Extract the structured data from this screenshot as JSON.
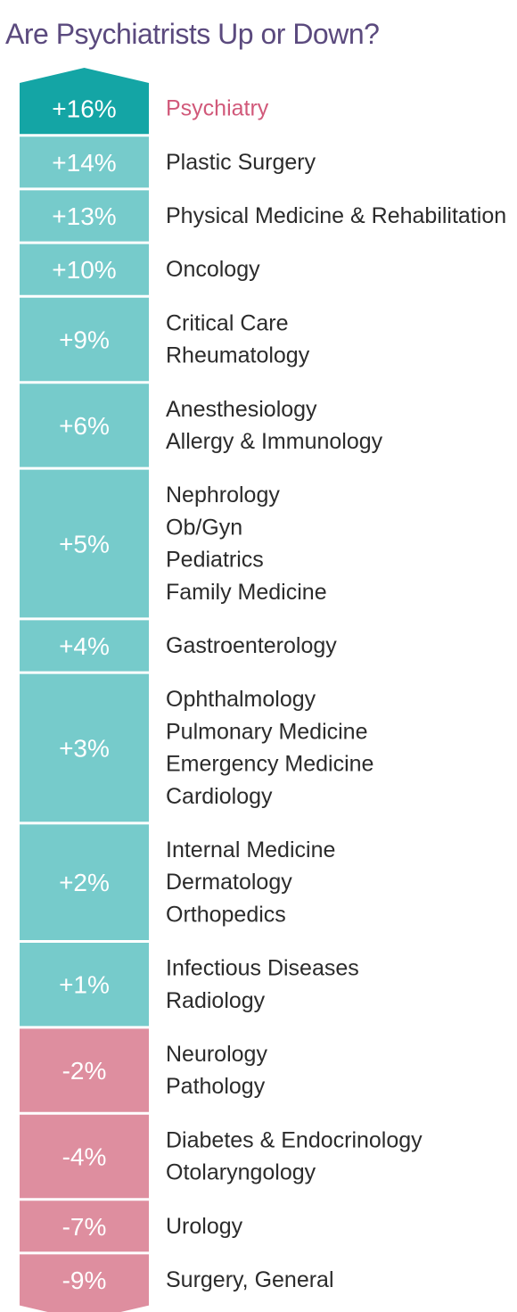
{
  "chart_data": {
    "type": "bar",
    "title": "Are Psychiatrists Up or Down?",
    "xlabel": "",
    "ylabel": "",
    "highlight_category": "Psychiatry",
    "colors": {
      "highlight": "#14a5a5",
      "positive": "#76cbcb",
      "negative": "#de8e9f",
      "highlight_label": "#d1597a",
      "label": "#2b2b2b",
      "title": "#5b4a7e"
    },
    "groups": [
      {
        "value": 16,
        "value_label": "+16%",
        "categories": [
          "Psychiatry"
        ]
      },
      {
        "value": 14,
        "value_label": "+14%",
        "categories": [
          "Plastic Surgery"
        ]
      },
      {
        "value": 13,
        "value_label": "+13%",
        "categories": [
          "Physical Medicine & Rehabilitation"
        ]
      },
      {
        "value": 10,
        "value_label": "+10%",
        "categories": [
          "Oncology"
        ]
      },
      {
        "value": 9,
        "value_label": "+9%",
        "categories": [
          "Critical Care",
          "Rheumatology"
        ]
      },
      {
        "value": 6,
        "value_label": "+6%",
        "categories": [
          "Anesthesiology",
          "Allergy & Immunology"
        ]
      },
      {
        "value": 5,
        "value_label": "+5%",
        "categories": [
          "Nephrology",
          "Ob/Gyn",
          "Pediatrics",
          "Family Medicine"
        ]
      },
      {
        "value": 4,
        "value_label": "+4%",
        "categories": [
          "Gastroenterology"
        ]
      },
      {
        "value": 3,
        "value_label": "+3%",
        "categories": [
          "Ophthalmology",
          "Pulmonary Medicine",
          "Emergency Medicine",
          "Cardiology"
        ]
      },
      {
        "value": 2,
        "value_label": "+2%",
        "categories": [
          "Internal Medicine",
          "Dermatology",
          "Orthopedics"
        ]
      },
      {
        "value": 1,
        "value_label": "+1%",
        "categories": [
          "Infectious Diseases",
          "Radiology"
        ]
      },
      {
        "value": -2,
        "value_label": "-2%",
        "categories": [
          "Neurology",
          "Pathology"
        ]
      },
      {
        "value": -4,
        "value_label": "-4%",
        "categories": [
          "Diabetes & Endocrinology",
          "Otolaryngology"
        ]
      },
      {
        "value": -7,
        "value_label": "-7%",
        "categories": [
          "Urology"
        ]
      },
      {
        "value": -9,
        "value_label": "-9%",
        "categories": [
          "Surgery, General"
        ]
      }
    ]
  }
}
